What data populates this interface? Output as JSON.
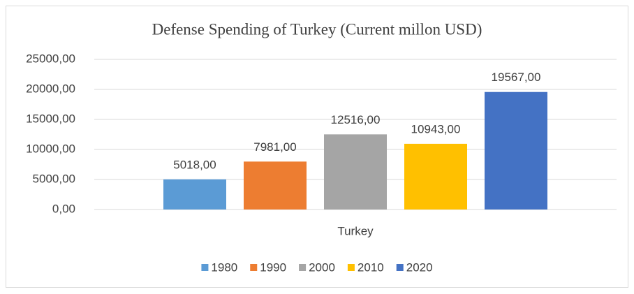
{
  "chart_data": {
    "type": "bar",
    "title": "Defense Spending of Turkey (Current millon USD)",
    "categories": [
      "Turkey"
    ],
    "series": [
      {
        "name": "1980",
        "color": "#5b9bd5",
        "values": [
          5018
        ],
        "value_labels": [
          "5018,00"
        ]
      },
      {
        "name": "1990",
        "color": "#ed7d31",
        "values": [
          7981
        ],
        "value_labels": [
          "7981,00"
        ]
      },
      {
        "name": "2000",
        "color": "#a5a5a5",
        "values": [
          12516
        ],
        "value_labels": [
          "12516,00"
        ]
      },
      {
        "name": "2010",
        "color": "#ffc000",
        "values": [
          10943
        ],
        "value_labels": [
          "10943,00"
        ]
      },
      {
        "name": "2020",
        "color": "#4472c4",
        "values": [
          19567
        ],
        "value_labels": [
          "19567,00"
        ]
      }
    ],
    "ylim": [
      0,
      25000
    ],
    "yticks": [
      {
        "value": 0,
        "label": "0,00"
      },
      {
        "value": 5000,
        "label": "5000,00"
      },
      {
        "value": 10000,
        "label": "10000,00"
      },
      {
        "value": 15000,
        "label": "15000,00"
      },
      {
        "value": 20000,
        "label": "20000,00"
      },
      {
        "value": 25000,
        "label": "25000,00"
      }
    ],
    "grid": true,
    "legend": "bottom"
  }
}
